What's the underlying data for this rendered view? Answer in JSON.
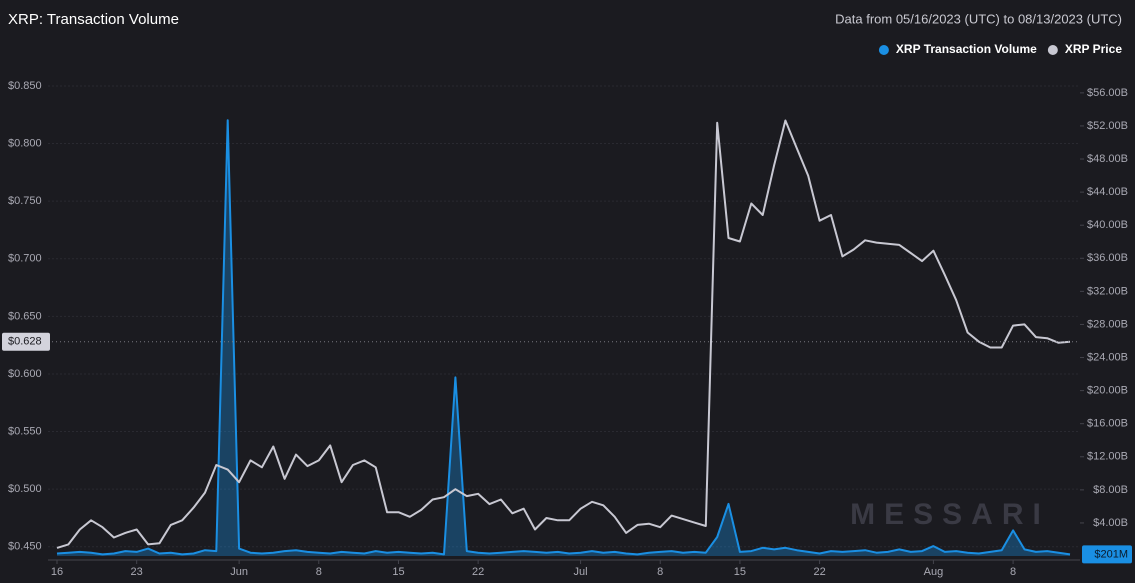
{
  "chart_data": {
    "type": "line",
    "title": "XRP: Transaction Volume",
    "subtitle": "Data from 05/16/2023 (UTC) to 08/13/2023 (UTC)",
    "watermark": "MESSARI",
    "x": [
      "2023-05-16",
      "2023-05-17",
      "2023-05-18",
      "2023-05-19",
      "2023-05-20",
      "2023-05-21",
      "2023-05-22",
      "2023-05-23",
      "2023-05-24",
      "2023-05-25",
      "2023-05-26",
      "2023-05-27",
      "2023-05-28",
      "2023-05-29",
      "2023-05-30",
      "2023-05-31",
      "2023-06-01",
      "2023-06-02",
      "2023-06-03",
      "2023-06-04",
      "2023-06-05",
      "2023-06-06",
      "2023-06-07",
      "2023-06-08",
      "2023-06-09",
      "2023-06-10",
      "2023-06-11",
      "2023-06-12",
      "2023-06-13",
      "2023-06-14",
      "2023-06-15",
      "2023-06-16",
      "2023-06-17",
      "2023-06-18",
      "2023-06-19",
      "2023-06-20",
      "2023-06-21",
      "2023-06-22",
      "2023-06-23",
      "2023-06-24",
      "2023-06-25",
      "2023-06-26",
      "2023-06-27",
      "2023-06-28",
      "2023-06-29",
      "2023-06-30",
      "2023-07-01",
      "2023-07-02",
      "2023-07-03",
      "2023-07-04",
      "2023-07-05",
      "2023-07-06",
      "2023-07-07",
      "2023-07-08",
      "2023-07-09",
      "2023-07-10",
      "2023-07-11",
      "2023-07-12",
      "2023-07-13",
      "2023-07-14",
      "2023-07-15",
      "2023-07-16",
      "2023-07-17",
      "2023-07-18",
      "2023-07-19",
      "2023-07-20",
      "2023-07-21",
      "2023-07-22",
      "2023-07-23",
      "2023-07-24",
      "2023-07-25",
      "2023-07-26",
      "2023-07-27",
      "2023-07-28",
      "2023-07-29",
      "2023-07-30",
      "2023-07-31",
      "2023-08-01",
      "2023-08-02",
      "2023-08-03",
      "2023-08-04",
      "2023-08-05",
      "2023-08-06",
      "2023-08-07",
      "2023-08-08",
      "2023-08-09",
      "2023-08-10",
      "2023-08-11",
      "2023-08-12",
      "2023-08-13"
    ],
    "xlim": [
      "2023-05-16",
      "2023-08-13"
    ],
    "xticks": [
      {
        "value": "2023-05-16",
        "label": "16"
      },
      {
        "value": "2023-05-23",
        "label": "23"
      },
      {
        "value": "2023-06-01",
        "label": "Jun"
      },
      {
        "value": "2023-06-08",
        "label": "8"
      },
      {
        "value": "2023-06-15",
        "label": "15"
      },
      {
        "value": "2023-06-22",
        "label": "22"
      },
      {
        "value": "2023-07-01",
        "label": "Jul"
      },
      {
        "value": "2023-07-08",
        "label": "8"
      },
      {
        "value": "2023-07-15",
        "label": "15"
      },
      {
        "value": "2023-07-22",
        "label": "22"
      },
      {
        "value": "2023-08-01",
        "label": "Aug"
      },
      {
        "value": "2023-08-08",
        "label": "8"
      }
    ],
    "ylim": [
      0.4385,
      0.8595
    ],
    "yticks": [
      {
        "value": 0.45,
        "label": "$0.450"
      },
      {
        "value": 0.5,
        "label": "$0.500"
      },
      {
        "value": 0.55,
        "label": "$0.550"
      },
      {
        "value": 0.6,
        "label": "$0.600"
      },
      {
        "value": 0.65,
        "label": "$0.650"
      },
      {
        "value": 0.7,
        "label": "$0.700"
      },
      {
        "value": 0.75,
        "label": "$0.750"
      },
      {
        "value": 0.8,
        "label": "$0.800"
      },
      {
        "value": 0.85,
        "label": "$0.850"
      }
    ],
    "y2lim": [
      -0.48,
      58.16
    ],
    "y2ticks": [
      {
        "value": 4,
        "label": "$4.00B"
      },
      {
        "value": 8,
        "label": "$8.00B"
      },
      {
        "value": 12,
        "label": "$12.00B"
      },
      {
        "value": 16,
        "label": "$16.00B"
      },
      {
        "value": 20,
        "label": "$20.00B"
      },
      {
        "value": 24,
        "label": "$24.00B"
      },
      {
        "value": 28,
        "label": "$28.00B"
      },
      {
        "value": 32,
        "label": "$32.00B"
      },
      {
        "value": 36,
        "label": "$36.00B"
      },
      {
        "value": 40,
        "label": "$40.00B"
      },
      {
        "value": 44,
        "label": "$44.00B"
      },
      {
        "value": 48,
        "label": "$48.00B"
      },
      {
        "value": 52,
        "label": "$52.00B"
      },
      {
        "value": 56,
        "label": "$56.00B"
      }
    ],
    "y_marker": {
      "value": 0.628,
      "label": "$0.628"
    },
    "y2_marker": {
      "value": 0.201,
      "label": "$201M"
    },
    "grid": true,
    "legend": "top-right",
    "series": [
      {
        "name": "XRP Transaction Volume",
        "color": "#1a8fe3",
        "axis": "y2",
        "area": true,
        "values": [
          0.3,
          0.4,
          0.5,
          0.4,
          0.2,
          0.3,
          0.6,
          0.5,
          0.9,
          0.3,
          0.4,
          0.2,
          0.3,
          0.7,
          0.6,
          52.7,
          0.9,
          0.4,
          0.3,
          0.4,
          0.6,
          0.7,
          0.5,
          0.4,
          0.3,
          0.5,
          0.4,
          0.3,
          0.6,
          0.4,
          0.5,
          0.4,
          0.3,
          0.4,
          0.2,
          21.6,
          0.6,
          0.4,
          0.3,
          0.4,
          0.5,
          0.6,
          0.5,
          0.4,
          0.5,
          0.3,
          0.4,
          0.6,
          0.4,
          0.5,
          0.3,
          0.2,
          0.4,
          0.5,
          0.6,
          0.4,
          0.5,
          0.4,
          2.3,
          6.3,
          0.5,
          0.6,
          1.0,
          0.8,
          1.0,
          0.7,
          0.5,
          0.3,
          0.6,
          0.5,
          0.6,
          0.7,
          0.4,
          0.5,
          0.8,
          0.5,
          0.6,
          1.2,
          0.5,
          0.6,
          0.4,
          0.3,
          0.5,
          0.7,
          3.1,
          0.8,
          0.5,
          0.6,
          0.4,
          0.201
        ]
      },
      {
        "name": "XRP Price",
        "color": "#c8c8d2",
        "values": [
          0.449,
          0.452,
          0.465,
          0.473,
          0.467,
          0.458,
          0.462,
          0.465,
          0.452,
          0.453,
          0.469,
          0.473,
          0.484,
          0.497,
          0.521,
          0.517,
          0.506,
          0.525,
          0.519,
          0.537,
          0.509,
          0.53,
          0.52,
          0.525,
          0.538,
          0.506,
          0.521,
          0.525,
          0.519,
          0.48,
          0.48,
          0.476,
          0.482,
          0.491,
          0.493,
          0.5,
          0.494,
          0.496,
          0.487,
          0.491,
          0.479,
          0.483,
          0.465,
          0.475,
          0.473,
          0.473,
          0.483,
          0.489,
          0.486,
          0.476,
          0.462,
          0.469,
          0.47,
          0.467,
          0.477,
          0.474,
          0.471,
          0.468,
          0.818,
          0.718,
          0.715,
          0.748,
          0.738,
          0.781,
          0.82,
          0.796,
          0.772,
          0.733,
          0.738,
          0.702,
          0.708,
          0.716,
          0.714,
          0.713,
          0.712,
          0.705,
          0.698,
          0.707,
          0.686,
          0.664,
          0.636,
          0.628,
          0.623,
          0.623,
          0.642,
          0.643,
          0.632,
          0.631,
          0.627,
          0.628
        ]
      }
    ]
  }
}
